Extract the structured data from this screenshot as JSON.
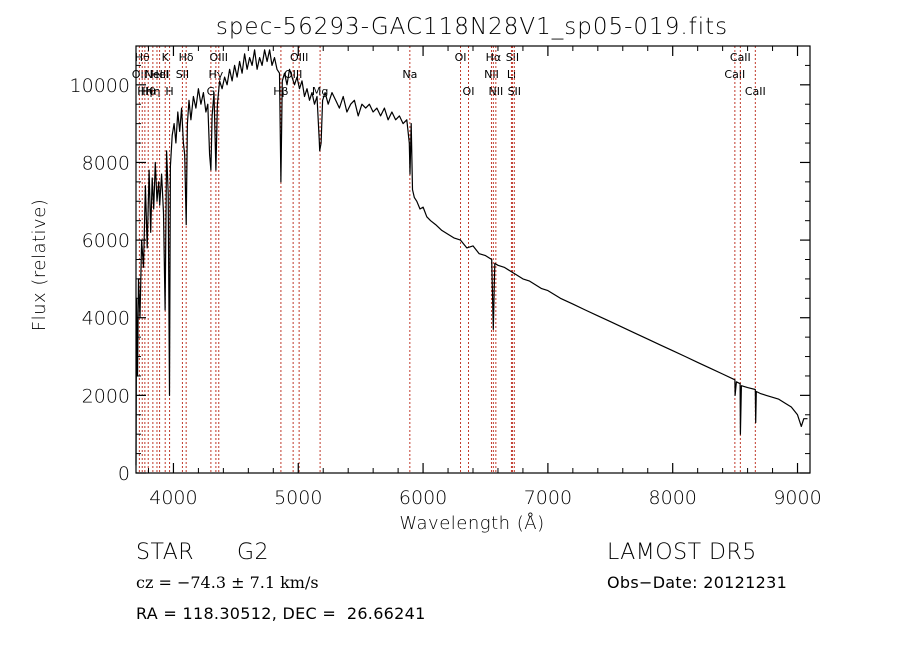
{
  "chart_data": {
    "type": "line",
    "title": "spec-56293-GAC118N28V1_sp05-019.fits",
    "xlabel": "Wavelength (Å)",
    "ylabel": "Flux (relative)",
    "xlim": [
      3700,
      9100
    ],
    "ylim": [
      0,
      11000
    ],
    "x_ticks": [
      4000,
      5000,
      6000,
      7000,
      8000,
      9000
    ],
    "y_ticks": [
      0,
      2000,
      4000,
      6000,
      8000,
      10000
    ],
    "grid": false,
    "line_color": "#000000",
    "marker_color": "#c0392b",
    "series": [
      {
        "points": [
          [
            3700,
            200
          ],
          [
            3705,
            4500
          ],
          [
            3712,
            2500
          ],
          [
            3720,
            5000
          ],
          [
            3732,
            4000
          ],
          [
            3745,
            6000
          ],
          [
            3760,
            5300
          ],
          [
            3775,
            7400
          ],
          [
            3790,
            5800
          ],
          [
            3805,
            7800
          ],
          [
            3818,
            6200
          ],
          [
            3830,
            7600
          ],
          [
            3842,
            6800
          ],
          [
            3855,
            8000
          ],
          [
            3868,
            7000
          ],
          [
            3882,
            7500
          ],
          [
            3890,
            6900
          ],
          [
            3905,
            7700
          ],
          [
            3920,
            6700
          ],
          [
            3933,
            4200
          ],
          [
            3945,
            8300
          ],
          [
            3958,
            7200
          ],
          [
            3968,
            2000
          ],
          [
            3976,
            7900
          ],
          [
            3990,
            8700
          ],
          [
            4005,
            9000
          ],
          [
            4020,
            8500
          ],
          [
            4035,
            9300
          ],
          [
            4050,
            8800
          ],
          [
            4065,
            9400
          ],
          [
            4080,
            8500
          ],
          [
            4090,
            8200
          ],
          [
            4102,
            6400
          ],
          [
            4112,
            9000
          ],
          [
            4125,
            9600
          ],
          [
            4140,
            9100
          ],
          [
            4160,
            9700
          ],
          [
            4180,
            9400
          ],
          [
            4200,
            9900
          ],
          [
            4220,
            9500
          ],
          [
            4240,
            9800
          ],
          [
            4260,
            9300
          ],
          [
            4275,
            9500
          ],
          [
            4290,
            8200
          ],
          [
            4300,
            7800
          ],
          [
            4310,
            9200
          ],
          [
            4325,
            9800
          ],
          [
            4340,
            7800
          ],
          [
            4352,
            9500
          ],
          [
            4370,
            10100
          ],
          [
            4390,
            9900
          ],
          [
            4410,
            10200
          ],
          [
            4430,
            10000
          ],
          [
            4450,
            10400
          ],
          [
            4470,
            10100
          ],
          [
            4490,
            10500
          ],
          [
            4510,
            10200
          ],
          [
            4530,
            10600
          ],
          [
            4550,
            10300
          ],
          [
            4570,
            10800
          ],
          [
            4590,
            10400
          ],
          [
            4610,
            10700
          ],
          [
            4630,
            10500
          ],
          [
            4650,
            10900
          ],
          [
            4670,
            10400
          ],
          [
            4690,
            10700
          ],
          [
            4710,
            10500
          ],
          [
            4730,
            10900
          ],
          [
            4750,
            10600
          ],
          [
            4770,
            10900
          ],
          [
            4790,
            10500
          ],
          [
            4810,
            10700
          ],
          [
            4830,
            10400
          ],
          [
            4850,
            10300
          ],
          [
            4861,
            7500
          ],
          [
            4872,
            10100
          ],
          [
            4890,
            10300
          ],
          [
            4910,
            10000
          ],
          [
            4930,
            10400
          ],
          [
            4950,
            10200
          ],
          [
            4970,
            10000
          ],
          [
            4990,
            10200
          ],
          [
            5010,
            9900
          ],
          [
            5030,
            10100
          ],
          [
            5050,
            9700
          ],
          [
            5070,
            9900
          ],
          [
            5090,
            9600
          ],
          [
            5110,
            9800
          ],
          [
            5130,
            9500
          ],
          [
            5150,
            9700
          ],
          [
            5168,
            8600
          ],
          [
            5172,
            8300
          ],
          [
            5183,
            8500
          ],
          [
            5195,
            9600
          ],
          [
            5215,
            9800
          ],
          [
            5240,
            9500
          ],
          [
            5270,
            9800
          ],
          [
            5300,
            9600
          ],
          [
            5330,
            9400
          ],
          [
            5360,
            9700
          ],
          [
            5390,
            9300
          ],
          [
            5420,
            9500
          ],
          [
            5450,
            9600
          ],
          [
            5480,
            9200
          ],
          [
            5510,
            9500
          ],
          [
            5540,
            9400
          ],
          [
            5570,
            9500
          ],
          [
            5600,
            9300
          ],
          [
            5630,
            9400
          ],
          [
            5660,
            9200
          ],
          [
            5690,
            9400
          ],
          [
            5720,
            9100
          ],
          [
            5750,
            9300
          ],
          [
            5780,
            9100
          ],
          [
            5810,
            9200
          ],
          [
            5840,
            9000
          ],
          [
            5870,
            9100
          ],
          [
            5890,
            8500
          ],
          [
            5895,
            7700
          ],
          [
            5905,
            9000
          ],
          [
            5915,
            7300
          ],
          [
            5930,
            7100
          ],
          [
            5950,
            7000
          ],
          [
            5975,
            6800
          ],
          [
            6000,
            6850
          ],
          [
            6030,
            6600
          ],
          [
            6060,
            6500
          ],
          [
            6100,
            6400
          ],
          [
            6150,
            6250
          ],
          [
            6200,
            6150
          ],
          [
            6250,
            6050
          ],
          [
            6300,
            6000
          ],
          [
            6350,
            5800
          ],
          [
            6400,
            5850
          ],
          [
            6450,
            5650
          ],
          [
            6500,
            5600
          ],
          [
            6550,
            5500
          ],
          [
            6563,
            3700
          ],
          [
            6575,
            5400
          ],
          [
            6600,
            5350
          ],
          [
            6650,
            5300
          ],
          [
            6700,
            5200
          ],
          [
            6750,
            5100
          ],
          [
            6800,
            5000
          ],
          [
            6850,
            4950
          ],
          [
            6900,
            4850
          ],
          [
            6950,
            4750
          ],
          [
            7000,
            4700
          ],
          [
            7100,
            4500
          ],
          [
            7200,
            4350
          ],
          [
            7300,
            4200
          ],
          [
            7400,
            4050
          ],
          [
            7500,
            3900
          ],
          [
            7600,
            3750
          ],
          [
            7700,
            3600
          ],
          [
            7800,
            3450
          ],
          [
            7900,
            3300
          ],
          [
            8000,
            3150
          ],
          [
            8100,
            3000
          ],
          [
            8200,
            2850
          ],
          [
            8300,
            2700
          ],
          [
            8400,
            2550
          ],
          [
            8498,
            2400
          ],
          [
            8500,
            2000
          ],
          [
            8510,
            2350
          ],
          [
            8540,
            2300
          ],
          [
            8542,
            1000
          ],
          [
            8550,
            2250
          ],
          [
            8600,
            2200
          ],
          [
            8662,
            2150
          ],
          [
            8665,
            1300
          ],
          [
            8670,
            2100
          ],
          [
            8700,
            2050
          ],
          [
            8750,
            2000
          ],
          [
            8800,
            1950
          ],
          [
            8850,
            1900
          ],
          [
            8900,
            1800
          ],
          [
            8950,
            1700
          ],
          [
            9000,
            1500
          ],
          [
            9030,
            1200
          ],
          [
            9050,
            1400
          ],
          [
            9080,
            1400
          ]
        ]
      }
    ],
    "line_markers": [
      {
        "x": 3727,
        "label": "OII",
        "row": 1
      },
      {
        "x": 3750,
        "label": "Hθ",
        "row": 0
      },
      {
        "x": 3771,
        "label": "Hη",
        "row": 2
      },
      {
        "x": 3798,
        "label": "Hθ",
        "row": 2
      },
      {
        "x": 3835,
        "label": "Hη",
        "row": 2
      },
      {
        "x": 3868,
        "label": "NeIII",
        "row": 1
      },
      {
        "x": 3889,
        "label": "HeI",
        "row": 1
      },
      {
        "x": 3934,
        "label": "K",
        "row": 0
      },
      {
        "x": 3969,
        "label": "H",
        "row": 2
      },
      {
        "x": 4072,
        "label": "SII",
        "row": 1
      },
      {
        "x": 4102,
        "label": "Hδ",
        "row": 0
      },
      {
        "x": 4300,
        "label": "G",
        "row": 2
      },
      {
        "x": 4340,
        "label": "Hγ",
        "row": 1
      },
      {
        "x": 4363,
        "label": "OIII",
        "row": 0
      },
      {
        "x": 4861,
        "label": "Hβ",
        "row": 2
      },
      {
        "x": 4959,
        "label": "OIII",
        "row": 1
      },
      {
        "x": 5007,
        "label": "OIII",
        "row": 0
      },
      {
        "x": 5175,
        "label": "Mg",
        "row": 2
      },
      {
        "x": 5894,
        "label": "Na",
        "row": 1
      },
      {
        "x": 6300,
        "label": "OI",
        "row": 0
      },
      {
        "x": 6364,
        "label": "OI",
        "row": 2
      },
      {
        "x": 6548,
        "label": "NII",
        "row": 1
      },
      {
        "x": 6563,
        "label": "Hα",
        "row": 0
      },
      {
        "x": 6583,
        "label": "NII",
        "row": 2
      },
      {
        "x": 6708,
        "label": "Li",
        "row": 1
      },
      {
        "x": 6716,
        "label": "SII",
        "row": 0
      },
      {
        "x": 6731,
        "label": "SII",
        "row": 2
      },
      {
        "x": 8498,
        "label": "CaII",
        "row": 1
      },
      {
        "x": 8542,
        "label": "CaII",
        "row": 0
      },
      {
        "x": 8662,
        "label": "CaII",
        "row": 2
      }
    ]
  },
  "info": {
    "object_class": "STAR",
    "subclass": "G2",
    "survey": "LAMOST DR5",
    "redshift_text": "cz = −74.3 ± 7.1 km/s",
    "obs_date": "Obs−Date: 20121231",
    "coords": "RA = 118.30512, DEC =  26.66241"
  }
}
